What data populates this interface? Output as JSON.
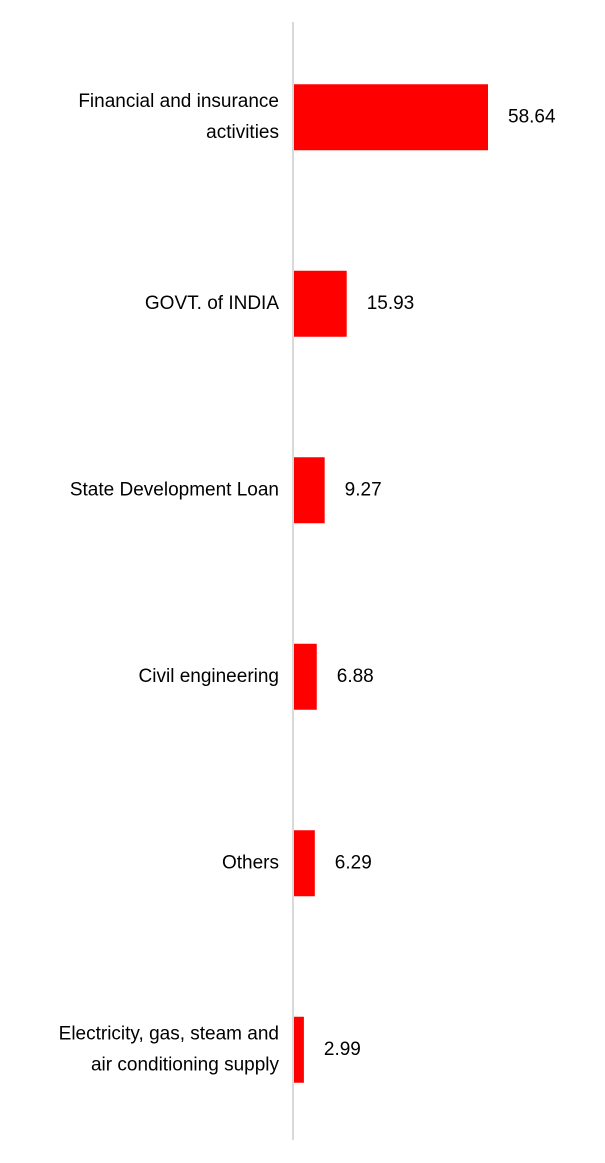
{
  "chart_data": {
    "type": "bar",
    "orientation": "horizontal",
    "categories": [
      [
        "Financial and insurance",
        "activities"
      ],
      [
        "GOVT. of INDIA"
      ],
      [
        "State Development Loan"
      ],
      [
        "Civil engineering"
      ],
      [
        "Others"
      ],
      [
        "Electricity, gas, steam and",
        "air conditioning supply"
      ]
    ],
    "values": [
      58.64,
      15.93,
      9.27,
      6.88,
      6.29,
      2.99
    ],
    "value_labels": [
      "58.64",
      "15.93",
      "9.27",
      "6.88",
      "6.29",
      "2.99"
    ],
    "bar_color": "#ff0000",
    "axis_color": "#d9d9d9",
    "xlim": [
      0,
      70
    ],
    "grid": false,
    "legend": "none"
  }
}
